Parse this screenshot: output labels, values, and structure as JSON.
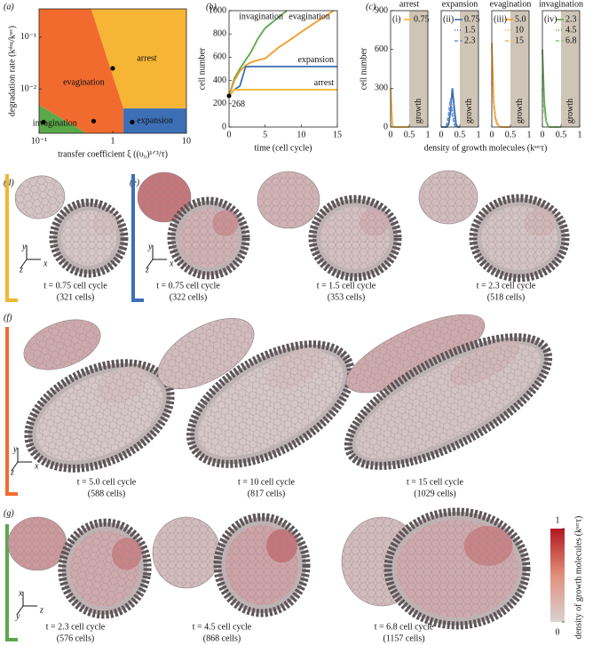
{
  "chart_data": [
    {
      "type": "phase",
      "panel": "(a)",
      "xlabel": "transfer coefficient ξ ((υ₀)¹ᐟ³/τ)",
      "ylabel": "degradation rate (kᵈᵉᵍ/kˢʳᶜ)",
      "log_x": true,
      "log_y": true,
      "xlim": [
        0.1,
        10
      ],
      "ylim": [
        0.0014,
        0.35
      ],
      "xticks": [
        {
          "value": 0.1,
          "label": "10⁻¹"
        },
        1,
        10
      ],
      "yticks": [
        {
          "value": 0.01,
          "label": "10⁻²"
        },
        {
          "value": 0.1,
          "label": "10⁻¹"
        }
      ],
      "regions": [
        {
          "name": "evagination",
          "color": "#f26b2e",
          "x": [
            0.1,
            0.51,
            1.4,
            1.4,
            0.44,
            0.1
          ],
          "y": [
            0.35,
            0.35,
            0.0042,
            0.0014,
            0.0014,
            0.0049
          ]
        },
        {
          "name": "arrest",
          "color": "#f7b535",
          "x": [
            0.51,
            10,
            10,
            1.4
          ],
          "y": [
            0.35,
            0.35,
            0.0042,
            0.0042
          ]
        },
        {
          "name": "expansion",
          "color": "#3c6fb6",
          "x": [
            1.4,
            10,
            10,
            1.4
          ],
          "y": [
            0.0042,
            0.0042,
            0.0014,
            0.0014
          ]
        },
        {
          "name": "invagination",
          "color": "#5aa84a",
          "x": [
            0.1,
            0.44,
            0.1
          ],
          "y": [
            0.0049,
            0.0014,
            0.0014
          ]
        }
      ],
      "points_x": [
        0.115,
        0.55,
        1.84,
        1.0
      ],
      "points_y": [
        0.0023,
        0.0024,
        0.0023,
        0.025
      ]
    },
    {
      "type": "line",
      "panel": "(b)",
      "xlabel": "time (cell cycle)",
      "ylabel": "cell number",
      "xlim": [
        0,
        15
      ],
      "ylim": [
        0,
        1000
      ],
      "xticks": [
        0,
        5,
        10,
        15
      ],
      "yticks": [
        0,
        200,
        400,
        600,
        800,
        1000
      ],
      "label_series": true,
      "x": [
        0,
        0.75,
        1.5,
        2.3,
        3,
        4,
        5,
        6,
        7,
        8,
        10,
        12,
        14.5,
        15
      ],
      "series": [
        {
          "name": "invagination",
          "color": "#5aa84a",
          "values": [
            268,
            420,
            500,
            576,
            640,
            760,
            850,
            900,
            950,
            1000,
            null,
            null,
            null,
            null
          ]
        },
        {
          "name": "evagination",
          "color": "#f39a24",
          "values": [
            268,
            400,
            480,
            530,
            555,
            575,
            588,
            640,
            690,
            730,
            817,
            900,
            1000,
            null
          ]
        },
        {
          "name": "expansion",
          "color": "#3c6fb6",
          "values": [
            268,
            322,
            353,
            518,
            520,
            520,
            520,
            520,
            520,
            520,
            520,
            520,
            520,
            520
          ]
        },
        {
          "name": "arrest",
          "color": "#f2b632",
          "values": [
            268,
            321,
            321,
            321,
            321,
            321,
            321,
            321,
            321,
            321,
            321,
            321,
            321,
            321
          ]
        }
      ],
      "annotations": [
        {
          "value": 268,
          "x": 0
        }
      ]
    },
    {
      "type": "line",
      "panel": "(c)",
      "title": "arrest",
      "tag": "(i)",
      "ylabel": "cell number",
      "xlabel": "density of growth molecules (kˢʳᶜτ)",
      "xlim": [
        0,
        1
      ],
      "ylim": [
        0,
        900
      ],
      "xticks": [
        0,
        0.5,
        1
      ],
      "yticks": [
        0,
        300,
        600,
        900
      ],
      "band": [
        0.5,
        1
      ],
      "band_label": "growth",
      "x": [
        0,
        0.05,
        0.1,
        0.15,
        0.2,
        0.25,
        0.3,
        0.35,
        0.4,
        0.45,
        0.5
      ],
      "series": [
        {
          "name": "0.75",
          "color": "#f2b632",
          "dash": "none",
          "values": [
            300,
            10,
            0,
            0,
            0,
            0,
            0,
            0,
            0,
            0,
            0
          ]
        }
      ]
    },
    {
      "type": "line",
      "title": "expansion",
      "tag": "(ii)",
      "xlim": [
        0,
        1
      ],
      "ylim": [
        0,
        900
      ],
      "xticks": [
        0,
        0.5,
        1
      ],
      "band": [
        0.5,
        1
      ],
      "band_label": "growth",
      "x": [
        0,
        0.05,
        0.1,
        0.15,
        0.2,
        0.25,
        0.3,
        0.35,
        0.4,
        0.45,
        0.5
      ],
      "series": [
        {
          "name": "0.75",
          "color": "#3c6fb6",
          "dash": "none",
          "values": [
            0,
            0,
            0,
            0,
            20,
            120,
            300,
            150,
            20,
            0,
            0
          ]
        },
        {
          "name": "1.5",
          "color": "#3c6fb6",
          "dash": "1 2",
          "values": [
            0,
            0,
            0,
            10,
            60,
            200,
            150,
            40,
            0,
            0,
            0
          ]
        },
        {
          "name": "2.3",
          "color": "#6e98d0",
          "dash": "4 2",
          "values": [
            0,
            0,
            0,
            20,
            100,
            220,
            90,
            20,
            0,
            0,
            0
          ]
        }
      ]
    },
    {
      "type": "line",
      "title": "evagination",
      "tag": "(iii)",
      "xlim": [
        0,
        1
      ],
      "ylim": [
        0,
        900
      ],
      "xticks": [
        0,
        0.5,
        1
      ],
      "band": [
        0.5,
        1
      ],
      "band_label": "growth",
      "x": [
        0,
        0.05,
        0.1,
        0.15,
        0.2,
        0.25,
        0.3,
        0.35,
        0.4,
        0.45,
        0.5
      ],
      "series": [
        {
          "name": "5.0",
          "color": "#f39a24",
          "dash": "none",
          "values": [
            650,
            200,
            60,
            20,
            5,
            0,
            0,
            0,
            0,
            0,
            0
          ]
        },
        {
          "name": "10",
          "color": "#f39a24",
          "dash": "1 2",
          "values": [
            450,
            150,
            60,
            20,
            5,
            0,
            0,
            0,
            0,
            0,
            0
          ]
        },
        {
          "name": "15",
          "color": "#f6b860",
          "dash": "4 2",
          "values": [
            350,
            200,
            80,
            30,
            5,
            0,
            0,
            0,
            0,
            0,
            0
          ]
        }
      ]
    },
    {
      "type": "line",
      "title": "invagination",
      "tag": "(iv)",
      "xlim": [
        0,
        1
      ],
      "ylim": [
        0,
        900
      ],
      "xticks": [
        0,
        0.5,
        1
      ],
      "band": [
        0.5,
        1
      ],
      "band_label": "growth",
      "x": [
        0,
        0.05,
        0.1,
        0.15,
        0.2,
        0.25,
        0.3,
        0.35,
        0.4,
        0.45,
        0.5
      ],
      "series": [
        {
          "name": "2.3",
          "color": "#5aa84a",
          "dash": "none",
          "values": [
            600,
            200,
            50,
            10,
            0,
            0,
            0,
            0,
            0,
            0,
            0
          ]
        },
        {
          "name": "4.5",
          "color": "#5aa84a",
          "dash": "1 2",
          "values": [
            400,
            150,
            40,
            10,
            0,
            0,
            0,
            0,
            0,
            0,
            0
          ]
        },
        {
          "name": "6.8",
          "color": "#88c27a",
          "dash": "4 2",
          "values": [
            300,
            120,
            40,
            10,
            0,
            0,
            0,
            0,
            0,
            0,
            0
          ]
        }
      ]
    }
  ],
  "snapshots": [
    {
      "label": "(d)",
      "color": "#f2b632",
      "axes": [
        "y",
        "z",
        "x"
      ],
      "captions": [
        [
          "t = 0.75 cell cycle",
          "(321 cells)"
        ]
      ]
    },
    {
      "label": "(e)",
      "color": "#3c6fb6",
      "axes": [
        "y",
        "z",
        "x"
      ],
      "captions": [
        [
          "t = 0.75 cell cycle",
          "(322 cells)"
        ],
        [
          "t = 1.5 cell cycle",
          "(353 cells)"
        ],
        [
          "t = 2.3 cell cycle",
          "(518 cells)"
        ]
      ]
    },
    {
      "label": "(f)",
      "color": "#f26b2e",
      "axes": [
        "y",
        "z",
        "x"
      ],
      "captions": [
        [
          "t = 5.0 cell cycle",
          "(588 cells)"
        ],
        [
          "t = 10 cell cycle",
          "(817 cells)"
        ],
        [
          "t = 15 cell cycle",
          "(1029 cells)"
        ]
      ]
    },
    {
      "label": "(g)",
      "color": "#5aa84a",
      "axes": [
        "x",
        "y",
        "z"
      ],
      "captions": [
        [
          "t = 2.3 cell cycle",
          "(576 cells)"
        ],
        [
          "t = 4.5 cell cycle",
          "(868 cells)"
        ],
        [
          "t = 6.8 cell cycle",
          "(1157 cells)"
        ]
      ]
    }
  ],
  "colorbar": {
    "label": "density of growth molecules (kˢʳᶜτ)",
    "lim": [
      0,
      1
    ],
    "ticks": [
      0,
      1
    ]
  }
}
